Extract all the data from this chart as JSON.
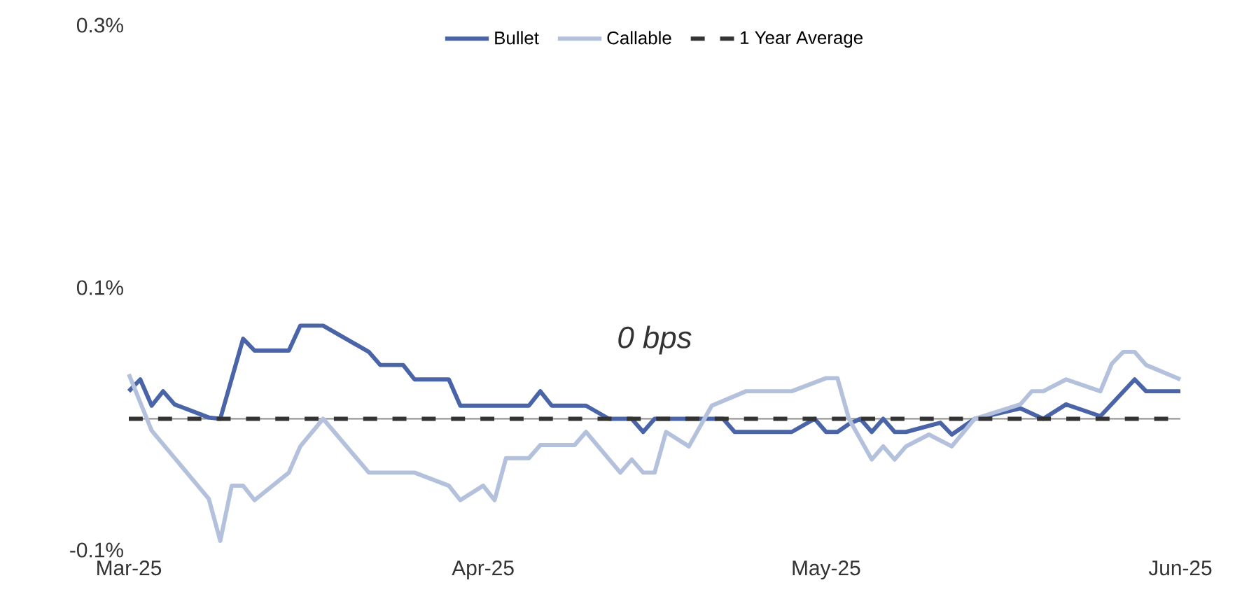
{
  "chart_data": {
    "type": "line",
    "xlim": [
      "2025-03-01",
      "2025-06-01"
    ],
    "xticks": [
      {
        "value": "2025-03-01",
        "label": "Mar-25"
      },
      {
        "value": "2025-04-01",
        "label": "Apr-25"
      },
      {
        "value": "2025-05-01",
        "label": "May-25"
      },
      {
        "value": "2025-06-01",
        "label": "Jun-25"
      }
    ],
    "ylim": [
      -0.1,
      0.3
    ],
    "yticks": [
      {
        "value": -0.1,
        "label": "-0.1%"
      },
      {
        "value": 0.1,
        "label": "0.1%"
      },
      {
        "value": 0.3,
        "label": "0.3%"
      }
    ],
    "grid": false,
    "legend": "top",
    "marker": "none",
    "annotations": [
      "0 bps"
    ],
    "series": [
      {
        "name": "Bullet",
        "color": "#4a64a8",
        "line_style": "solid",
        "x": [
          "2025-03-01",
          "2025-03-02",
          "2025-03-03",
          "2025-03-04",
          "2025-03-05",
          "2025-03-08",
          "2025-03-09",
          "2025-03-11",
          "2025-03-12",
          "2025-03-15",
          "2025-03-16",
          "2025-03-18",
          "2025-03-22",
          "2025-03-23",
          "2025-03-25",
          "2025-03-26",
          "2025-03-29",
          "2025-03-30",
          "2025-04-03",
          "2025-04-05",
          "2025-04-06",
          "2025-04-07",
          "2025-04-10",
          "2025-04-12",
          "2025-04-14",
          "2025-04-15",
          "2025-04-16",
          "2025-04-22",
          "2025-04-23",
          "2025-04-28",
          "2025-04-30",
          "2025-05-01",
          "2025-05-02",
          "2025-05-03",
          "2025-05-04",
          "2025-05-05",
          "2025-05-06",
          "2025-05-07",
          "2025-05-08",
          "2025-05-11",
          "2025-05-12",
          "2025-05-14",
          "2025-05-18",
          "2025-05-20",
          "2025-05-22",
          "2025-05-25",
          "2025-05-28",
          "2025-05-29",
          "2025-06-01"
        ],
        "values": [
          0.021,
          0.03,
          0.01,
          0.021,
          0.011,
          0.001,
          0,
          0.061,
          0.052,
          0.052,
          0.071,
          0.071,
          0.051,
          0.041,
          0.041,
          0.03,
          0.03,
          0.01,
          0.01,
          0.01,
          0.021,
          0.01,
          0.01,
          0,
          0,
          -0.01,
          0,
          0,
          -0.01,
          -0.01,
          0,
          -0.01,
          -0.01,
          -0.004,
          0,
          -0.01,
          0,
          -0.01,
          -0.01,
          -0.003,
          -0.012,
          0,
          0.008,
          0,
          0.011,
          0.002,
          0.03,
          0.021,
          0.021
        ]
      },
      {
        "name": "Callable",
        "color": "#b4c1dd",
        "line_style": "solid",
        "x": [
          "2025-03-01",
          "2025-03-03",
          "2025-03-08",
          "2025-03-09",
          "2025-03-10",
          "2025-03-11",
          "2025-03-12",
          "2025-03-15",
          "2025-03-16",
          "2025-03-18",
          "2025-03-22",
          "2025-03-26",
          "2025-03-29",
          "2025-03-30",
          "2025-04-01",
          "2025-04-02",
          "2025-04-03",
          "2025-04-05",
          "2025-04-06",
          "2025-04-09",
          "2025-04-10",
          "2025-04-13",
          "2025-04-14",
          "2025-04-15",
          "2025-04-16",
          "2025-04-17",
          "2025-04-19",
          "2025-04-21",
          "2025-04-24",
          "2025-04-28",
          "2025-05-01",
          "2025-05-02",
          "2025-05-03",
          "2025-05-05",
          "2025-05-06",
          "2025-05-07",
          "2025-05-08",
          "2025-05-10",
          "2025-05-12",
          "2025-05-14",
          "2025-05-18",
          "2025-05-19",
          "2025-05-20",
          "2025-05-22",
          "2025-05-25",
          "2025-05-26",
          "2025-05-27",
          "2025-05-28",
          "2025-05-29",
          "2025-06-01"
        ],
        "values": [
          0.034,
          -0.009,
          -0.061,
          -0.093,
          -0.051,
          -0.051,
          -0.062,
          -0.041,
          -0.021,
          0,
          -0.041,
          -0.041,
          -0.051,
          -0.062,
          -0.051,
          -0.062,
          -0.03,
          -0.03,
          -0.02,
          -0.02,
          -0.01,
          -0.041,
          -0.031,
          -0.041,
          -0.041,
          -0.01,
          -0.021,
          0.01,
          0.021,
          0.021,
          0.031,
          0.031,
          0,
          -0.031,
          -0.021,
          -0.031,
          -0.021,
          -0.012,
          -0.021,
          0,
          0.011,
          0.021,
          0.021,
          0.03,
          0.021,
          0.042,
          0.051,
          0.051,
          0.041,
          0.03
        ]
      },
      {
        "name": "1 Year Average",
        "color": "#333333",
        "line_style": "dashed",
        "x": [
          "2025-03-01",
          "2025-06-01"
        ],
        "values": [
          0,
          0
        ]
      }
    ]
  }
}
